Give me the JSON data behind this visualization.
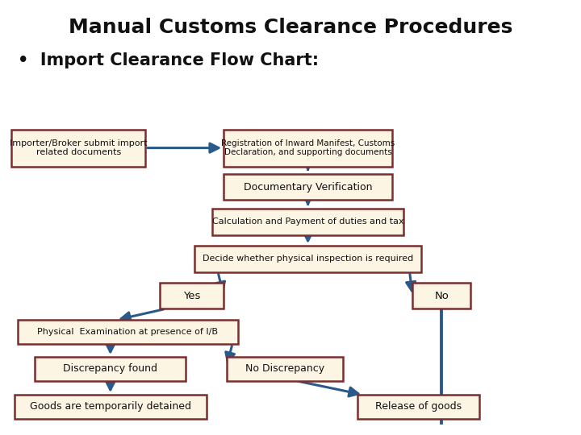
{
  "title": "Manual Customs Clearance Procedures",
  "subtitle": "•  Import Clearance Flow Chart:",
  "bg_color": "#ffffff",
  "box_fill": "#fdf5e4",
  "box_edge": "#7a2e2e",
  "arrow_color": "#2a5a8a",
  "title_fontsize": 18,
  "subtitle_fontsize": 15,
  "positions": {
    "importer": [
      0.135,
      0.66,
      0.23,
      0.085
    ],
    "registration": [
      0.53,
      0.66,
      0.29,
      0.085
    ],
    "documentary": [
      0.53,
      0.57,
      0.29,
      0.06
    ],
    "calculation": [
      0.53,
      0.49,
      0.33,
      0.06
    ],
    "decide": [
      0.53,
      0.405,
      0.39,
      0.06
    ],
    "yes": [
      0.33,
      0.32,
      0.11,
      0.06
    ],
    "no": [
      0.76,
      0.32,
      0.1,
      0.06
    ],
    "physical": [
      0.22,
      0.237,
      0.38,
      0.055
    ],
    "discrepancy": [
      0.19,
      0.152,
      0.26,
      0.055
    ],
    "no_discrepancy": [
      0.49,
      0.152,
      0.2,
      0.055
    ],
    "detained": [
      0.19,
      0.065,
      0.33,
      0.055
    ],
    "release": [
      0.72,
      0.065,
      0.21,
      0.055
    ]
  },
  "texts": {
    "importer": "Importer/Broker submit import\nrelated documents",
    "registration": "Registration of Inward Manifest, Customs\nDeclaration, and supporting documents",
    "documentary": "Documentary Verification",
    "calculation": "Calculation and Payment of duties and tax",
    "decide": "Decide whether physical inspection is required",
    "yes": "Yes",
    "no": "No",
    "physical": "Physical  Examination at presence of I/B",
    "discrepancy": "Discrepancy found",
    "no_discrepancy": "No Discrepancy",
    "detained": "Goods are temporarily detained",
    "release": "Release of goods"
  },
  "fontsizes": {
    "importer": 8.0,
    "registration": 7.5,
    "documentary": 9.0,
    "calculation": 8.0,
    "decide": 8.0,
    "yes": 9.5,
    "no": 9.5,
    "physical": 8.0,
    "discrepancy": 9.0,
    "no_discrepancy": 9.0,
    "detained": 9.0,
    "release": 9.0
  }
}
